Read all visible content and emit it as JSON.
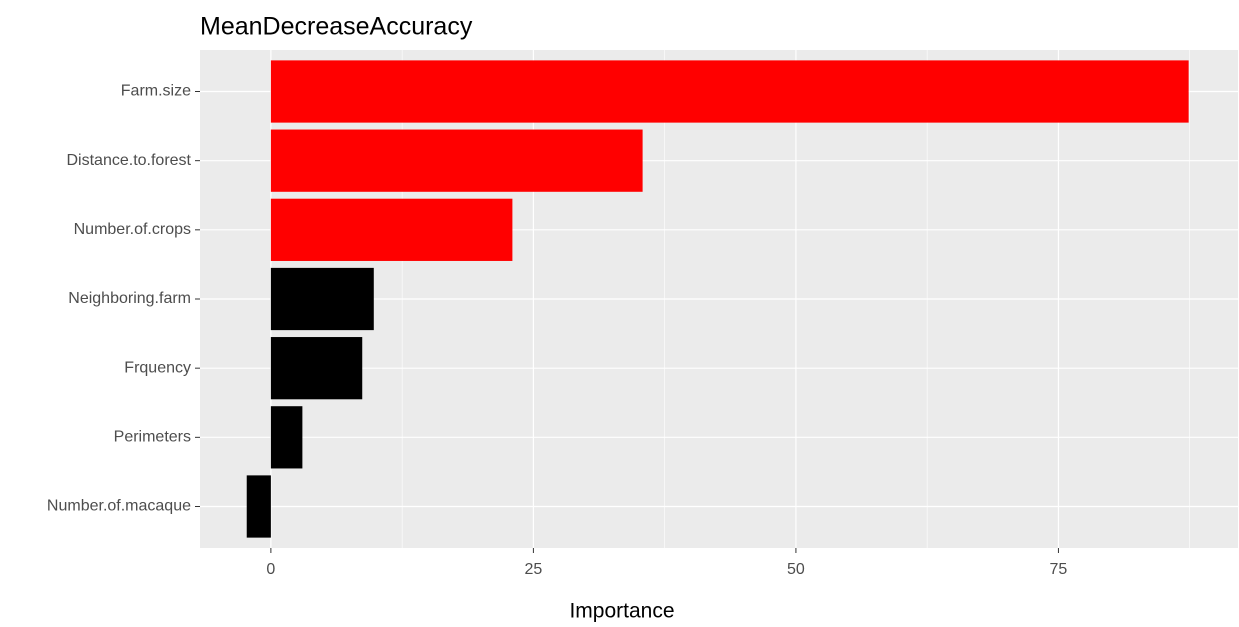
{
  "chart_data": {
    "type": "barh",
    "title": "MeanDecreaseAccuracy",
    "x_label": "Importance",
    "categories": [
      "Farm.size",
      "Distance.to.forest",
      "Number.of.crops",
      "Neighboring.farm",
      "Frquency",
      "Perimeters",
      "Number.of.macaque"
    ],
    "values": [
      87.4,
      35.4,
      23.0,
      9.8,
      8.7,
      3.0,
      -2.3
    ],
    "colors": [
      "#ff0000",
      "#ff0000",
      "#ff0000",
      "#000000",
      "#000000",
      "#000000",
      "#000000"
    ],
    "xlim": [
      -6.75,
      92.1
    ],
    "xticks": [
      0,
      25,
      50,
      75
    ],
    "grid": true
  }
}
